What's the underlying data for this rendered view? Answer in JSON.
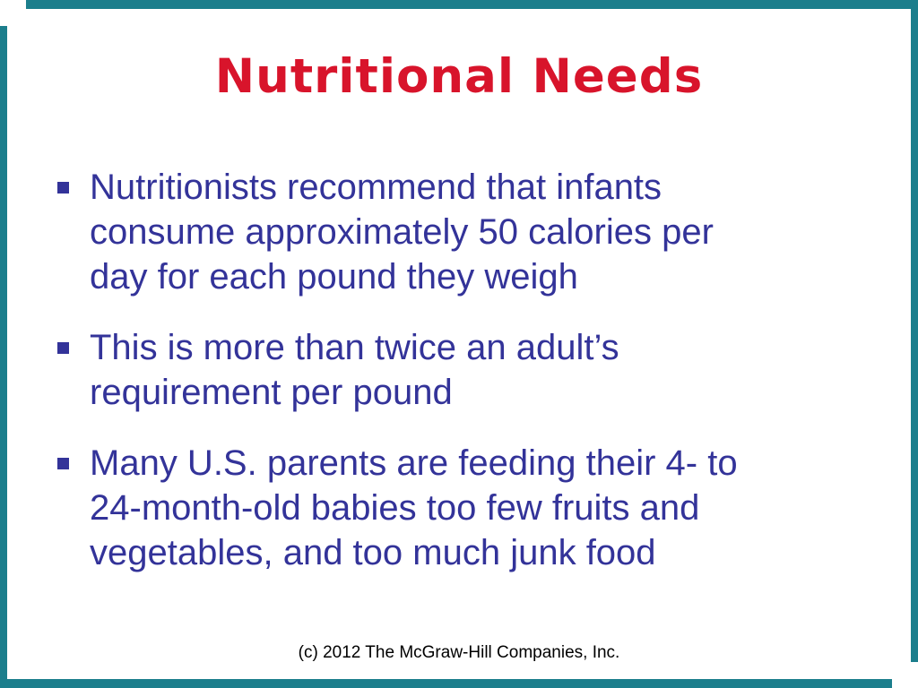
{
  "slide": {
    "title": "Nutritional Needs",
    "bullets": [
      {
        "text": "Nutritionists recommend that infants\nconsume approximately 50 calories per\nday for each pound they weigh"
      },
      {
        "text": "This is more than twice an adult’s\nrequirement per pound"
      },
      {
        "text": "Many U.S. parents are feeding their 4- to\n24-month-old babies too few fruits and\nvegetables, and too much junk food"
      }
    ],
    "footer": "(c) 2012 The McGraw-Hill Companies, Inc."
  },
  "colors": {
    "border_teal": "#1B7E8C",
    "title_red": "#D8142B",
    "body_blue": "#333399",
    "footer_black": "#000000",
    "background": "#FFFFFF"
  }
}
